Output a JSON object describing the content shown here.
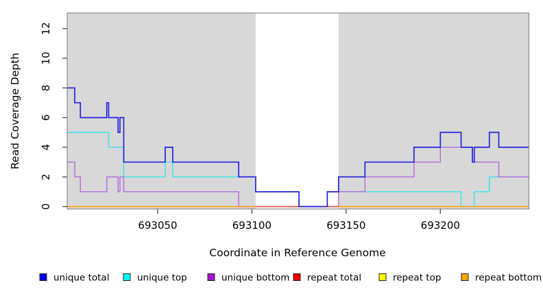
{
  "chart_data": {
    "type": "step-line",
    "title": "",
    "xlabel": "Coordinate in Reference Genome",
    "ylabel": "Read Coverage Depth",
    "xlim": [
      693002,
      693247
    ],
    "ylim": [
      0,
      13
    ],
    "x_ticks": [
      693050,
      693100,
      693150,
      693200
    ],
    "y_ticks": [
      0,
      2,
      4,
      6,
      8,
      10,
      12
    ],
    "grid": false,
    "plot_background_color": "#d8d8d8",
    "shaded_unique_regions": [
      [
        693002,
        693102
      ],
      [
        693146,
        693247
      ]
    ],
    "unshaded_repeat_region": [
      693102,
      693146
    ],
    "series": [
      {
        "name": "repeat-top",
        "label": "repeat top",
        "line_color": "#ffff00",
        "steps": [
          [
            693002,
            0
          ]
        ],
        "end": 693247
      },
      {
        "name": "unique-top",
        "label": "unique top",
        "line_color": "#35e3ea",
        "steps": [
          [
            693002,
            5
          ],
          [
            693024,
            4
          ],
          [
            693032,
            2
          ],
          [
            693054,
            3
          ],
          [
            693058,
            2
          ],
          [
            693102,
            1
          ],
          [
            693125,
            0
          ],
          [
            693140,
            1
          ],
          [
            693211,
            0
          ],
          [
            693218,
            1
          ],
          [
            693226,
            2
          ]
        ],
        "end": 693247
      },
      {
        "name": "unique-bottom",
        "label": "unique bottom",
        "line_color": "#b469dc",
        "steps": [
          [
            693002,
            3
          ],
          [
            693006,
            2
          ],
          [
            693009,
            1
          ],
          [
            693023,
            2
          ],
          [
            693029,
            1
          ],
          [
            693030,
            2
          ],
          [
            693032,
            1
          ],
          [
            693093,
            0
          ],
          [
            693146,
            1
          ],
          [
            693160,
            2
          ],
          [
            693186,
            3
          ],
          [
            693200,
            4
          ],
          [
            693217,
            3
          ],
          [
            693231,
            2
          ]
        ],
        "end": 693247
      },
      {
        "name": "repeat-bottom",
        "label": "repeat bottom",
        "line_color": "#ff9b1a",
        "steps": [
          [
            693002,
            0
          ]
        ],
        "end": 693247
      },
      {
        "name": "repeat-total",
        "label": "repeat total",
        "line_color": "#d84f63",
        "steps": [
          [
            693102,
            0
          ]
        ],
        "end": 693146
      },
      {
        "name": "unique-total",
        "label": "unique total",
        "line_color": "#2323e0",
        "steps": [
          [
            693002,
            8
          ],
          [
            693006,
            7
          ],
          [
            693009,
            6
          ],
          [
            693023,
            7
          ],
          [
            693024,
            6
          ],
          [
            693029,
            5
          ],
          [
            693030,
            6
          ],
          [
            693032,
            3
          ],
          [
            693054,
            4
          ],
          [
            693058,
            3
          ],
          [
            693093,
            2
          ],
          [
            693102,
            1
          ],
          [
            693125,
            0
          ],
          [
            693140,
            1
          ],
          [
            693146,
            2
          ],
          [
            693160,
            3
          ],
          [
            693186,
            4
          ],
          [
            693200,
            5
          ],
          [
            693211,
            4
          ],
          [
            693217,
            3
          ],
          [
            693218,
            4
          ],
          [
            693226,
            5
          ],
          [
            693231,
            4
          ]
        ],
        "end": 693247
      }
    ]
  },
  "legend": {
    "items": [
      {
        "label": "unique total",
        "color": "#0000ee"
      },
      {
        "label": "unique top",
        "color": "#00ffff"
      },
      {
        "label": "unique bottom",
        "color": "#a313cf"
      },
      {
        "label": "repeat total",
        "color": "#ee0000"
      },
      {
        "label": "repeat top",
        "color": "#ffff00"
      },
      {
        "label": "repeat bottom",
        "color": "#ffa500"
      }
    ]
  }
}
